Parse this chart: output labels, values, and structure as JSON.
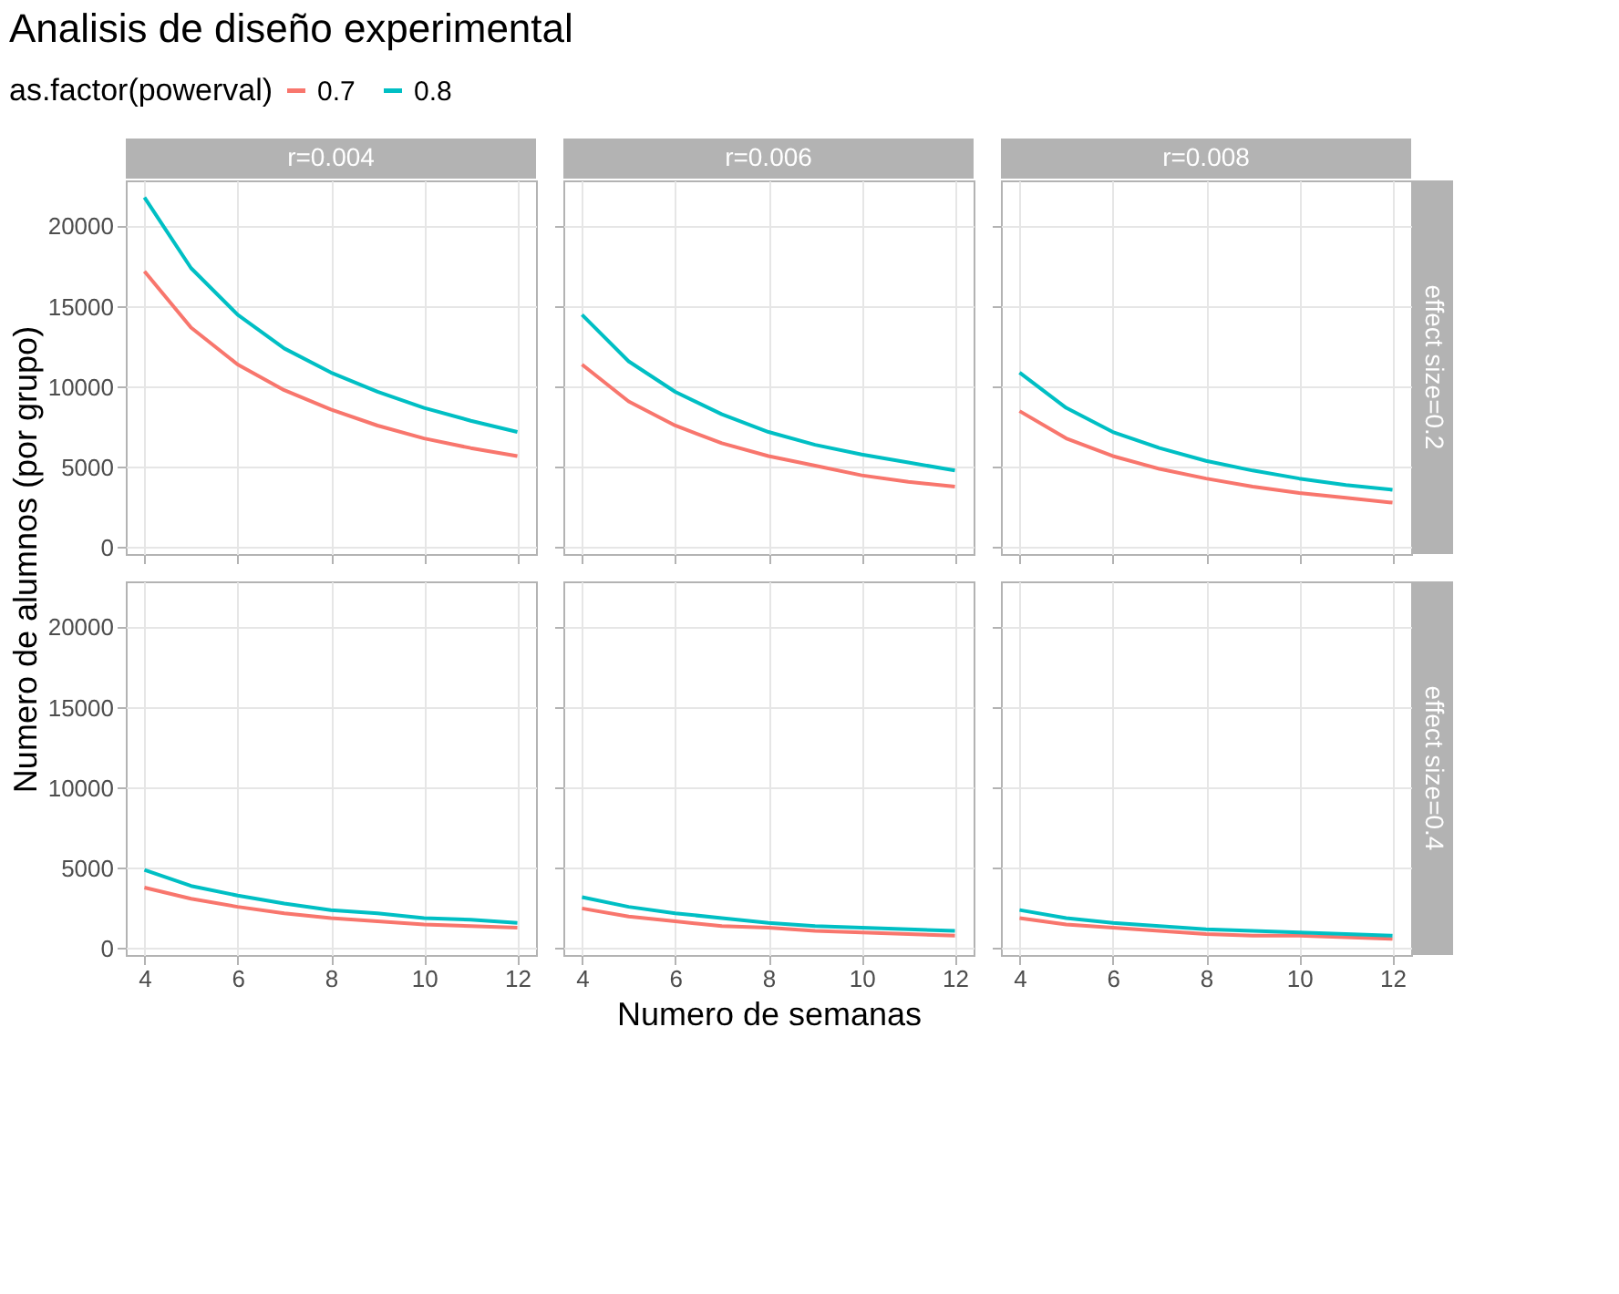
{
  "chart_data": [
    {
      "type": "line",
      "title": "Analisis de diseño experimental",
      "subtitle": "r=0.004",
      "ylabel": "Numero de alumnos (por grupo)",
      "legend_title": "as.factor(powerval)",
      "legend": "top",
      "grid": true,
      "tick_labels": "y",
      "xlim": [
        3.6,
        12.4
      ],
      "xticks": [
        4,
        6,
        8,
        10,
        12
      ],
      "ylim": [
        -400,
        22860
      ],
      "yticks": [
        0,
        5000,
        10000,
        15000,
        20000
      ],
      "x": [
        4,
        5,
        6,
        7,
        8,
        9,
        10,
        11,
        12
      ],
      "series": [
        {
          "name": "0.7",
          "color": "#f8766d",
          "values": [
            17200,
            13700,
            11400,
            9800,
            8600,
            7600,
            6800,
            6200,
            5700
          ]
        },
        {
          "name": "0.8",
          "color": "#00bfc4",
          "values": [
            21800,
            17400,
            14500,
            12400,
            10900,
            9700,
            8700,
            7900,
            7200
          ]
        }
      ]
    },
    {
      "type": "line",
      "subtitle": "r=0.006",
      "grid": true,
      "tick_labels": false,
      "xlim": [
        3.6,
        12.4
      ],
      "xticks": [
        4,
        6,
        8,
        10,
        12
      ],
      "ylim": [
        -400,
        22860
      ],
      "yticks": [
        0,
        5000,
        10000,
        15000,
        20000
      ],
      "x": [
        4,
        5,
        6,
        7,
        8,
        9,
        10,
        11,
        12
      ],
      "series": [
        {
          "name": "0.7",
          "color": "#f8766d",
          "values": [
            11400,
            9100,
            7600,
            6500,
            5700,
            5100,
            4500,
            4100,
            3800
          ]
        },
        {
          "name": "0.8",
          "color": "#00bfc4",
          "values": [
            14500,
            11600,
            9700,
            8300,
            7200,
            6400,
            5800,
            5300,
            4800
          ]
        }
      ]
    },
    {
      "type": "line",
      "subtitle": "r=0.008",
      "y2label": "effect size=0.2",
      "grid": true,
      "tick_labels": false,
      "xlim": [
        3.6,
        12.4
      ],
      "xticks": [
        4,
        6,
        8,
        10,
        12
      ],
      "ylim": [
        -400,
        22860
      ],
      "yticks": [
        0,
        5000,
        10000,
        15000,
        20000
      ],
      "x": [
        4,
        5,
        6,
        7,
        8,
        9,
        10,
        11,
        12
      ],
      "series": [
        {
          "name": "0.7",
          "color": "#f8766d",
          "values": [
            8500,
            6800,
            5700,
            4900,
            4300,
            3800,
            3400,
            3100,
            2800
          ]
        },
        {
          "name": "0.8",
          "color": "#00bfc4",
          "values": [
            10900,
            8700,
            7200,
            6200,
            5400,
            4800,
            4300,
            3900,
            3600
          ]
        }
      ]
    },
    {
      "type": "line",
      "grid": true,
      "xlim": [
        3.6,
        12.4
      ],
      "xticks": [
        4,
        6,
        8,
        10,
        12
      ],
      "ylim": [
        -400,
        22860
      ],
      "yticks": [
        0,
        5000,
        10000,
        15000,
        20000
      ],
      "x": [
        4,
        5,
        6,
        7,
        8,
        9,
        10,
        11,
        12
      ],
      "series": [
        {
          "name": "0.7",
          "color": "#f8766d",
          "values": [
            3800,
            3100,
            2600,
            2200,
            1900,
            1700,
            1500,
            1400,
            1300
          ]
        },
        {
          "name": "0.8",
          "color": "#00bfc4",
          "values": [
            4900,
            3900,
            3300,
            2800,
            2400,
            2200,
            1900,
            1800,
            1600
          ]
        }
      ]
    },
    {
      "type": "line",
      "xlabel": "Numero de semanas",
      "grid": true,
      "tick_labels": "x",
      "xlim": [
        3.6,
        12.4
      ],
      "xticks": [
        4,
        6,
        8,
        10,
        12
      ],
      "ylim": [
        -400,
        22860
      ],
      "yticks": [
        0,
        5000,
        10000,
        15000,
        20000
      ],
      "x": [
        4,
        5,
        6,
        7,
        8,
        9,
        10,
        11,
        12
      ],
      "series": [
        {
          "name": "0.7",
          "color": "#f8766d",
          "values": [
            2500,
            2000,
            1700,
            1400,
            1300,
            1100,
            1000,
            900,
            800
          ]
        },
        {
          "name": "0.8",
          "color": "#00bfc4",
          "values": [
            3200,
            2600,
            2200,
            1900,
            1600,
            1400,
            1300,
            1200,
            1100
          ]
        }
      ]
    },
    {
      "type": "line",
      "y2label": "effect size=0.4",
      "grid": true,
      "tick_labels": "x",
      "xlim": [
        3.6,
        12.4
      ],
      "xticks": [
        4,
        6,
        8,
        10,
        12
      ],
      "ylim": [
        -400,
        22860
      ],
      "yticks": [
        0,
        5000,
        10000,
        15000,
        20000
      ],
      "x": [
        4,
        5,
        6,
        7,
        8,
        9,
        10,
        11,
        12
      ],
      "series": [
        {
          "name": "0.7",
          "color": "#f8766d",
          "values": [
            1900,
            1500,
            1300,
            1100,
            900,
            800,
            800,
            700,
            600
          ]
        },
        {
          "name": "0.8",
          "color": "#00bfc4",
          "values": [
            2400,
            1900,
            1600,
            1400,
            1200,
            1100,
            1000,
            900,
            800
          ]
        }
      ]
    }
  ]
}
